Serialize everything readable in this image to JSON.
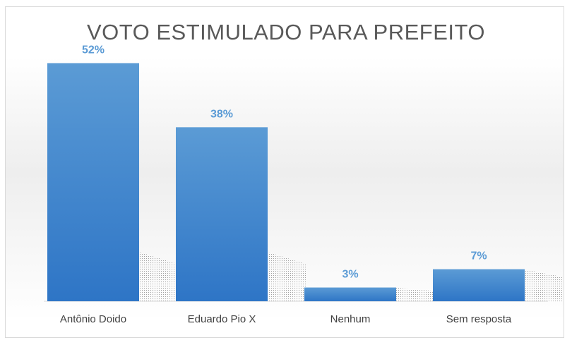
{
  "chart_data": {
    "type": "bar",
    "title": "VOTO ESTIMULADO PARA PREFEITO",
    "categories": [
      "Antônio Doido",
      "Eduardo Pio X",
      "Nenhum",
      "Sem resposta"
    ],
    "values": [
      52,
      38,
      3,
      7
    ],
    "data_labels": [
      "52%",
      "38%",
      "3%",
      "7%"
    ],
    "unit": "%",
    "ylim": [
      0,
      55
    ],
    "grid": false,
    "legend": "none",
    "colors": {
      "bar_top": "#5b9bd5",
      "bar_bottom": "#2e75c6",
      "label": "#5b9bd5",
      "text": "#404040"
    }
  }
}
